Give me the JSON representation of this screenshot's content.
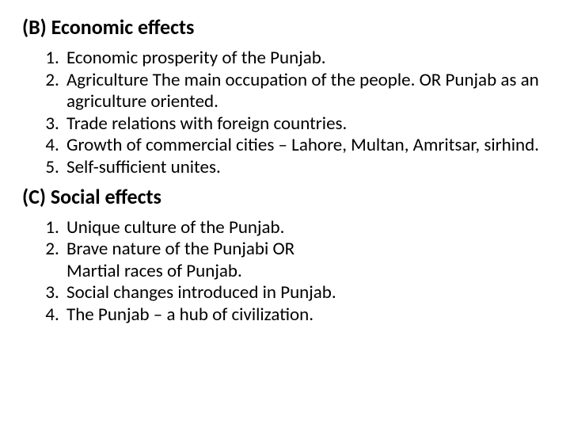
{
  "section_b": {
    "heading": "(B) Economic effects",
    "items": [
      "Economic prosperity of the Punjab.",
      "Agriculture  The main occupation of the people.  OR Punjab as an agriculture oriented.",
      "Trade relations with foreign countries.",
      "Growth of commercial cities – Lahore, Multan, Amritsar, sirhind.",
      "Self-sufficient unites."
    ]
  },
  "section_c": {
    "heading": "(C) Social effects",
    "items": [
      "Unique culture of the Punjab.",
      "Brave nature of the Punjabi OR",
      " Social changes introduced in Punjab.",
      " The Punjab – a hub of civilization."
    ],
    "sub_after_2": "Martial races of Punjab."
  }
}
